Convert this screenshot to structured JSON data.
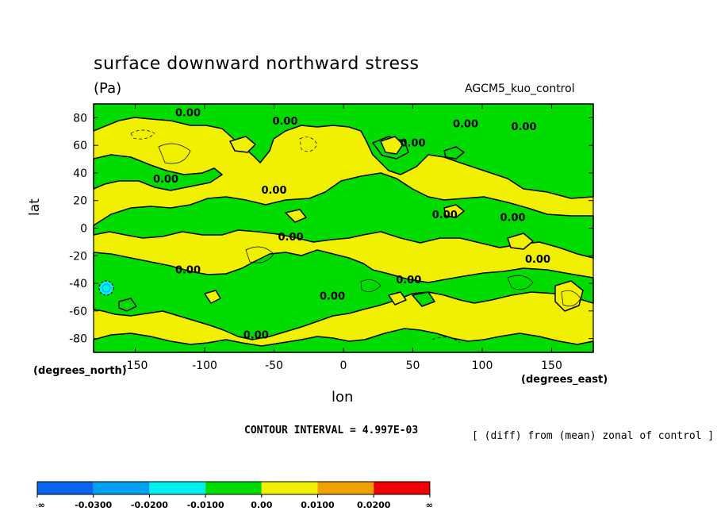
{
  "chart_data": {
    "type": "contour",
    "title": "surface downward northward stress",
    "units": "(Pa)",
    "model_label": "AGCM5_kuo_control",
    "xlabel": "lon",
    "ylabel": "lat",
    "x_axis_note": "(degrees_east)",
    "y_axis_note": "(degrees_north)",
    "xlim": [
      -180,
      180
    ],
    "ylim": [
      -90,
      90
    ],
    "x_ticks": [
      -150,
      -100,
      -50,
      0,
      50,
      100,
      150
    ],
    "y_ticks": [
      80,
      60,
      40,
      20,
      0,
      -20,
      -40,
      -60,
      -80
    ],
    "contour_interval_text": "CONTOUR INTERVAL = 4.997E-03",
    "footnote": "[ (diff) from (mean) zonal of control ]",
    "zero_contour_labels": [
      {
        "text": "0.00",
        "lon": -112,
        "lat": 84
      },
      {
        "text": "0.00",
        "lon": -42,
        "lat": 78
      },
      {
        "text": "0.00",
        "lon": 88,
        "lat": 76
      },
      {
        "text": "0.00",
        "lon": 130,
        "lat": 74
      },
      {
        "text": "0.00",
        "lon": 50,
        "lat": 62
      },
      {
        "text": "0.00",
        "lon": -128,
        "lat": 36
      },
      {
        "text": "0.00",
        "lon": -50,
        "lat": 28
      },
      {
        "text": "0.00",
        "lon": 73,
        "lat": 10
      },
      {
        "text": "0.00",
        "lon": 122,
        "lat": 8
      },
      {
        "text": "0.00",
        "lon": -38,
        "lat": -6
      },
      {
        "text": "0.00",
        "lon": 140,
        "lat": -22
      },
      {
        "text": "0.00",
        "lon": -112,
        "lat": -30
      },
      {
        "text": "0.00",
        "lon": 47,
        "lat": -37
      },
      {
        "text": "0.00",
        "lon": -8,
        "lat": -49
      },
      {
        "text": "0.00",
        "lon": -63,
        "lat": -77
      }
    ],
    "colorbar": {
      "colors": [
        "#0a64f0",
        "#00a0f0",
        "#00f0f0",
        "#00dc00",
        "#f0f000",
        "#f0a000",
        "#f00000"
      ],
      "labels": [
        "-∞",
        "-0.0300",
        "-0.0200",
        "-0.0100",
        "0.00",
        "0.0100",
        "0.0200",
        "∞"
      ]
    },
    "fill_colors": {
      "negative": "#00dc00",
      "positive": "#f0f000",
      "strong_negative": "#00f0f0"
    }
  }
}
